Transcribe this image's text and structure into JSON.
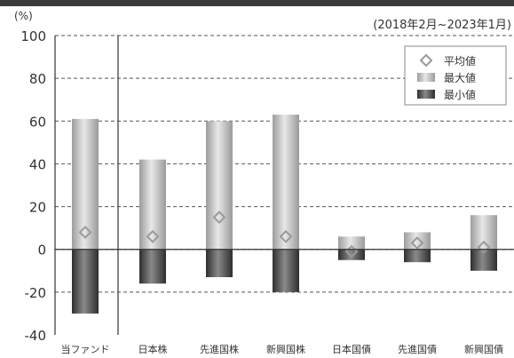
{
  "chart_data": {
    "type": "bar",
    "y_unit_label": "(%)",
    "period_label": "(2018年2月~2023年1月)",
    "ylim": [
      -40,
      100
    ],
    "yticks": [
      100,
      80,
      60,
      40,
      20,
      0,
      -20,
      -40
    ],
    "grid": "dashed horizontal",
    "legend_position": "top-right",
    "categories": [
      "当ファンド",
      "日本株",
      "先進国株",
      "新興国株",
      "日本国債",
      "先進国債",
      "新興国債"
    ],
    "series": [
      {
        "name": "平均値",
        "marker": "diamond",
        "values": [
          8,
          6,
          15,
          6,
          -1,
          3,
          1
        ]
      },
      {
        "name": "最大値",
        "values": [
          61,
          42,
          60,
          63,
          6,
          8,
          16
        ]
      },
      {
        "name": "最小値",
        "values": [
          -30,
          -16,
          -13,
          -20,
          -5,
          -6,
          -10
        ]
      }
    ],
    "colors": {
      "bar_light": "#c4c4c4",
      "bar_dark": "#4a4a4a",
      "marker": "#b5b5b5",
      "axis": "#333333"
    }
  }
}
